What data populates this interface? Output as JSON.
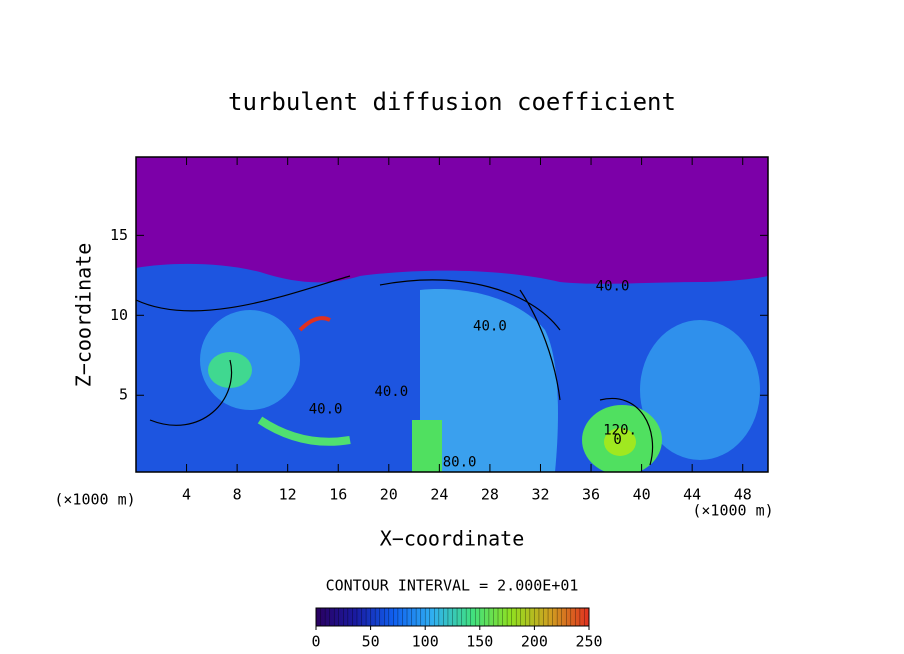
{
  "chart_data": {
    "type": "contour",
    "title": "turbulent diffusion coefficient",
    "x_label": "X−coordinate",
    "y_label": "Z−coordinate",
    "x_unit": "(×1000 m)",
    "y_unit": "(×1000 m)",
    "contour_interval": "CONTOUR INTERVAL = 2.000E+01",
    "xlim": [
      0,
      50
    ],
    "xticks": [
      4,
      8,
      12,
      16,
      20,
      24,
      28,
      32,
      36,
      40,
      44,
      48
    ],
    "ylim": [
      0.2,
      19.9
    ],
    "yticks": [
      5,
      10,
      15
    ],
    "colorbar_lim": [
      0,
      250
    ],
    "colorbar_ticks": [
      0,
      50,
      100,
      150,
      200,
      250
    ],
    "colormap": [
      "#2a0060",
      "#1a1aa0",
      "#1060f0",
      "#30b0f0",
      "#40e080",
      "#90e020",
      "#d0a020",
      "#e03020"
    ],
    "contour_labels": [
      {
        "x": 28,
        "y": 9.3,
        "value": 40,
        "label": "40.0"
      },
      {
        "x": 20.2,
        "y": 5.2,
        "value": 40,
        "label": "40.0"
      },
      {
        "x": 15,
        "y": 4.1,
        "value": 40,
        "label": "40.0"
      },
      {
        "x": 37.7,
        "y": 11.8,
        "value": 40,
        "label": "40.0"
      },
      {
        "x": 25.6,
        "y": 0.8,
        "value": 80,
        "label": "80.0"
      },
      {
        "x": 38.3,
        "y": 2.8,
        "value": 120,
        "label": "120."
      },
      {
        "x": 38.1,
        "y": 2.2,
        "value": 0,
        "label": "0"
      }
    ]
  }
}
